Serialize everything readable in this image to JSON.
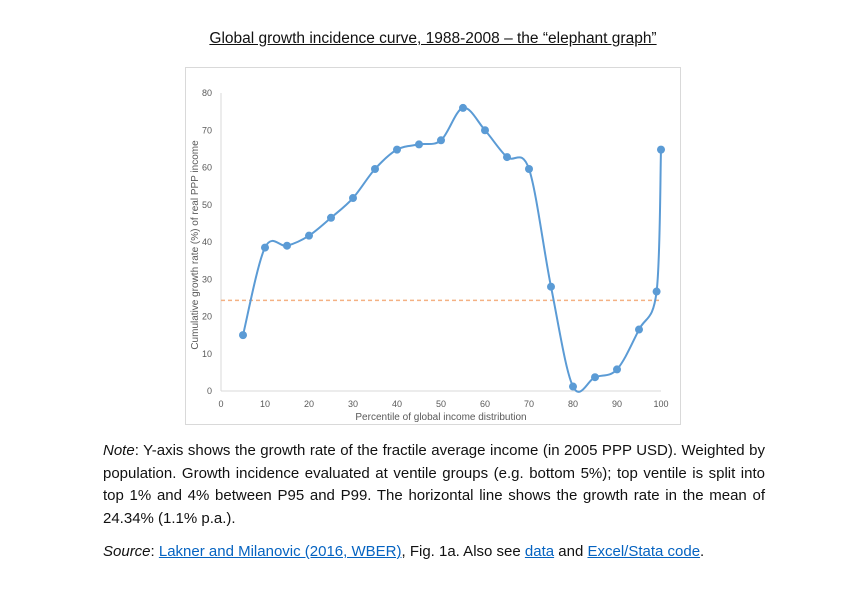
{
  "title": "Global growth incidence curve, 1988-2008 – the “elephant graph”",
  "chart_data": {
    "type": "line",
    "title": "",
    "xlabel": "Percentile of global income distribution",
    "ylabel": "Cumulative growth rate (%) of real PPP income",
    "xlim": [
      0,
      100
    ],
    "ylim": [
      0,
      80
    ],
    "xticks": [
      0,
      10,
      20,
      30,
      40,
      50,
      60,
      70,
      80,
      90,
      100
    ],
    "yticks": [
      0,
      10,
      20,
      30,
      40,
      50,
      60,
      70,
      80
    ],
    "grid": false,
    "legend": "none",
    "series": [
      {
        "x": [
          5,
          10,
          15,
          20,
          25,
          30,
          35,
          40,
          45,
          50,
          55,
          60,
          65,
          70,
          75,
          80,
          85,
          90,
          95,
          99,
          100
        ],
        "y": [
          15,
          38.5,
          39,
          41.7,
          46.5,
          51.8,
          59.6,
          64.8,
          66.2,
          67.3,
          76,
          70,
          62.8,
          59.6,
          28,
          1.2,
          3.7,
          5.8,
          16.5,
          26.7,
          64.8
        ],
        "color": "#5b9bd5",
        "style": "smooth line with markers"
      }
    ],
    "reference_line": {
      "y": 24.34,
      "color": "#f4b183",
      "style": "dashed"
    }
  },
  "note": {
    "label": "Note",
    "text": ": Y-axis shows the growth rate of the fractile average income (in 2005 PPP USD). Weighted by population. Growth incidence evaluated at ventile groups (e.g. bottom 5%); top ventile is split into top 1% and 4% between P95 and P99. The horizontal line shows the growth rate in the mean of 24.34% (1.1% p.a.)."
  },
  "source": {
    "label": "Source",
    "sep": ": ",
    "link1": "Lakner and Milanovic (2016, WBER)",
    "text1": ", Fig. 1a. Also see ",
    "link2": "data",
    "text2": " and ",
    "link3": "Excel/Stata code",
    "text3": "."
  }
}
